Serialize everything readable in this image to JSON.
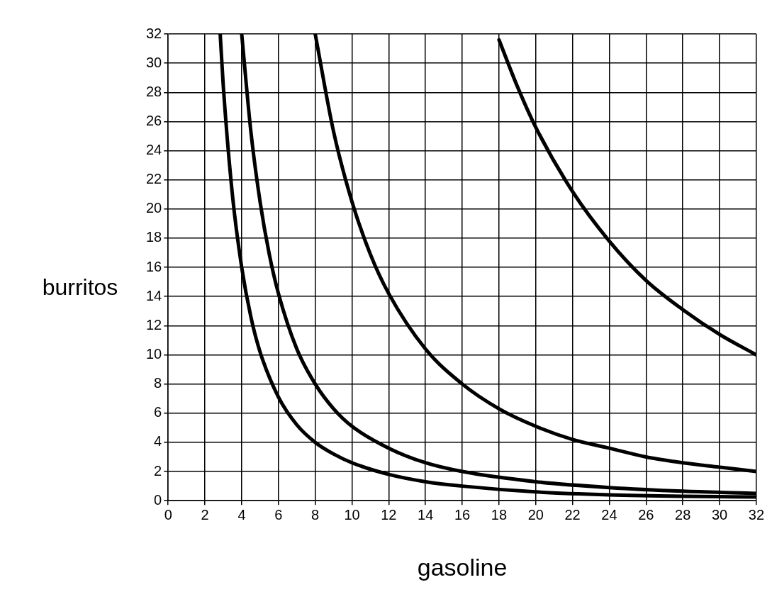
{
  "chart_data": {
    "type": "line",
    "xlabel": "gasoline",
    "ylabel": "burritos",
    "xlim": [
      0,
      32
    ],
    "ylim": [
      0,
      32
    ],
    "xticks": [
      0,
      2,
      4,
      6,
      8,
      10,
      12,
      14,
      16,
      18,
      20,
      22,
      24,
      26,
      28,
      30,
      32
    ],
    "yticks": [
      0,
      2,
      4,
      6,
      8,
      10,
      12,
      14,
      16,
      18,
      20,
      22,
      24,
      26,
      28,
      30,
      32
    ],
    "grid": true,
    "legend": false,
    "marker": "none",
    "line_style": "solid",
    "series": [
      {
        "color": "#000000",
        "x": [
          2.83,
          3,
          3.5,
          4,
          4.5,
          5,
          6,
          7,
          8,
          9,
          10,
          12,
          14,
          16,
          20,
          24,
          28,
          32
        ],
        "values": [
          32,
          28.4,
          20.9,
          16,
          12.6,
          10.2,
          7.1,
          5.2,
          4,
          3.2,
          2.6,
          1.8,
          1.3,
          1,
          0.6,
          0.4,
          0.3,
          0.25
        ]
      },
      {
        "color": "#000000",
        "x": [
          4,
          4.5,
          5,
          5.5,
          6,
          7,
          8,
          9,
          10,
          12,
          14,
          16,
          20,
          24,
          28,
          32
        ],
        "values": [
          32,
          25.3,
          20.5,
          16.9,
          14.2,
          10.4,
          8,
          6.3,
          5.1,
          3.6,
          2.6,
          2,
          1.3,
          0.9,
          0.65,
          0.5
        ]
      },
      {
        "color": "#000000",
        "x": [
          8,
          9,
          10,
          11,
          12,
          14,
          16,
          18,
          20,
          22,
          24,
          26,
          28,
          30,
          32
        ],
        "values": [
          32,
          25.3,
          20.5,
          16.9,
          14.2,
          10.4,
          8,
          6.3,
          5.1,
          4.2,
          3.6,
          3,
          2.6,
          2.3,
          2
        ]
      },
      {
        "color": "#000000",
        "x": [
          18,
          19,
          20,
          22,
          24,
          26,
          28,
          30,
          32
        ],
        "values": [
          31.6,
          28.4,
          25.6,
          21.2,
          17.8,
          15.1,
          13.1,
          11.4,
          10
        ]
      }
    ]
  }
}
